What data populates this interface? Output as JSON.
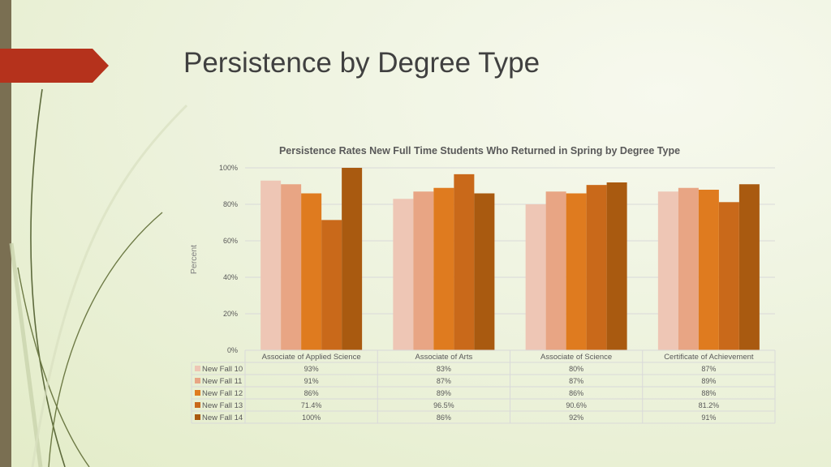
{
  "slide": {
    "title": "Persistence by Degree Type"
  },
  "chart_data": {
    "type": "bar",
    "title": "Persistence Rates New Full Time Students Who Returned in Spring by Degree Type",
    "ylabel": "Percent",
    "xlabel": "",
    "ylim": [
      0,
      100
    ],
    "yticks": [
      0,
      20,
      40,
      60,
      80,
      100
    ],
    "ytick_suffix": "%",
    "grid": true,
    "legend": "data-table-left",
    "categories": [
      "Associate of Applied Science",
      "Associate of Arts",
      "Associate of Science",
      "Certificate of Achievement"
    ],
    "series": [
      {
        "name": "New Fall 10",
        "color": "#eec6b5",
        "values": [
          93,
          83,
          80,
          87
        ],
        "labels": [
          "93%",
          "83%",
          "80%",
          "87%"
        ]
      },
      {
        "name": "New Fall 11",
        "color": "#e8a584",
        "values": [
          91,
          87,
          87,
          89
        ],
        "labels": [
          "91%",
          "87%",
          "87%",
          "89%"
        ]
      },
      {
        "name": "New Fall 12",
        "color": "#df7b1f",
        "values": [
          86,
          89,
          86,
          88
        ],
        "labels": [
          "86%",
          "89%",
          "86%",
          "88%"
        ]
      },
      {
        "name": "New Fall 13",
        "color": "#c9691a",
        "values": [
          71.4,
          96.5,
          90.6,
          81.2
        ],
        "labels": [
          "71.4%",
          "96.5%",
          "90.6%",
          "81.2%"
        ]
      },
      {
        "name": "New Fall 14",
        "color": "#a95a10",
        "values": [
          100,
          86,
          92,
          91
        ],
        "labels": [
          "100%",
          "86%",
          "92%",
          "91%"
        ]
      }
    ]
  }
}
